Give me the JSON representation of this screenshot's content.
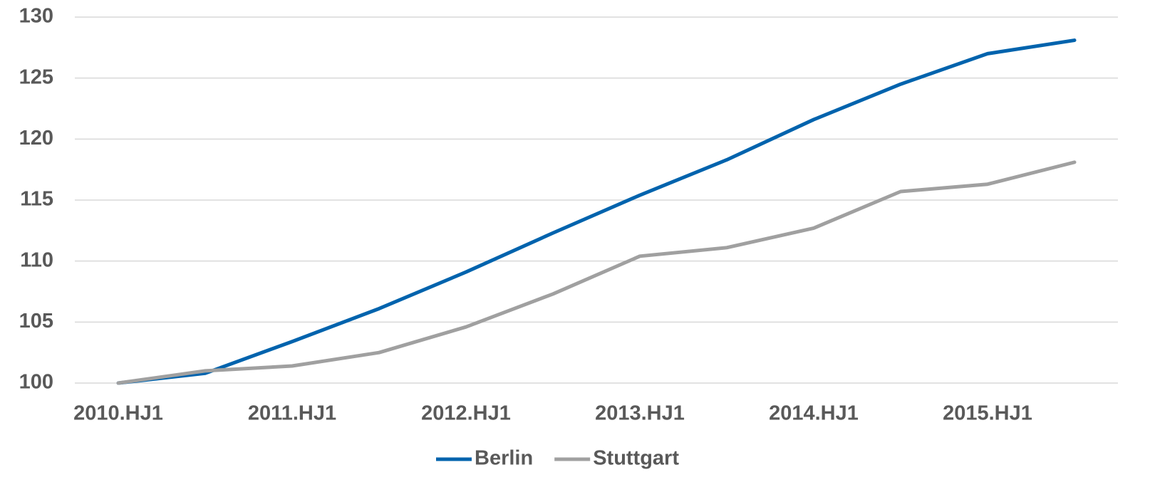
{
  "chart_data": {
    "type": "line",
    "categories": [
      "2010.HJ1",
      null,
      "2011.HJ1",
      null,
      "2012.HJ1",
      null,
      "2013.HJ1",
      null,
      "2014.HJ1",
      null,
      "2015.HJ1",
      null
    ],
    "series": [
      {
        "name": "Berlin",
        "color": "#0063ad",
        "values": [
          100,
          100.8,
          103.4,
          106.1,
          109.1,
          112.3,
          115.4,
          118.3,
          121.6,
          124.5,
          127,
          128.1
        ]
      },
      {
        "name": "Stuttgart",
        "color": "#a0a0a0",
        "values": [
          100,
          101,
          101.4,
          102.5,
          104.6,
          107.3,
          110.4,
          111.1,
          112.7,
          115.7,
          116.3,
          118.1
        ]
      }
    ],
    "ylim": [
      100,
      130
    ],
    "yticks": [
      100,
      105,
      110,
      115,
      120,
      125,
      130
    ],
    "grid": true,
    "legend": "bottom"
  }
}
